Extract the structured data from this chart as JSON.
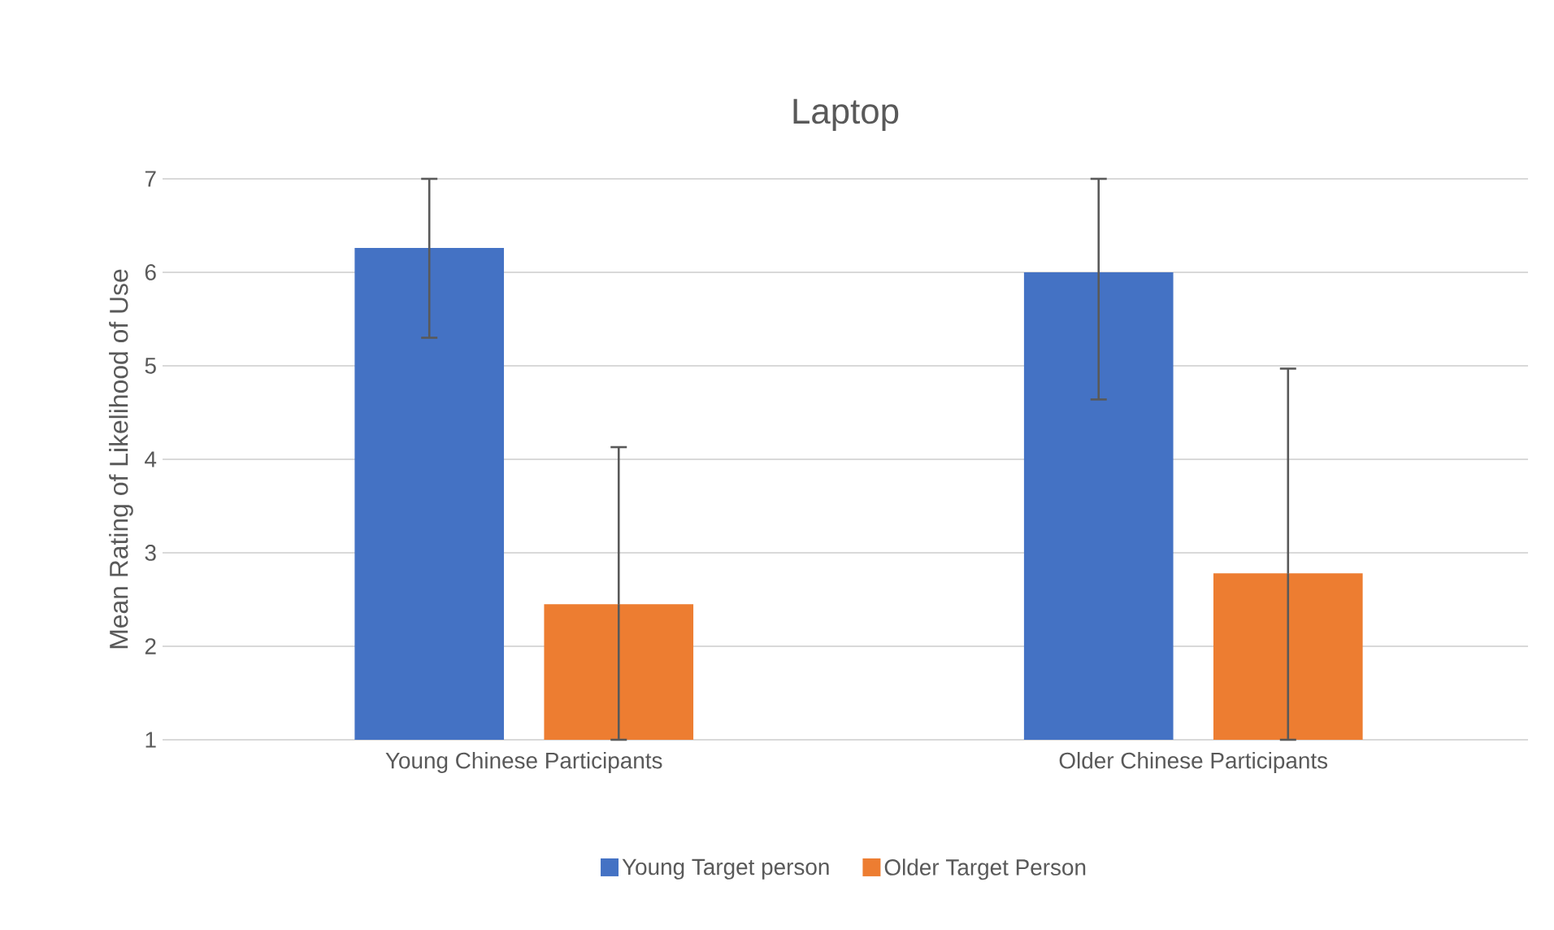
{
  "chart_data": {
    "type": "bar",
    "title": "Laptop",
    "ylabel": "Mean Rating of Likelihood of Use",
    "categories": [
      "Young Chinese Participants",
      "Older Chinese Participants"
    ],
    "series": [
      {
        "name": "Young Target person",
        "color": "#4472c4",
        "values": [
          6.26,
          6.0
        ],
        "errors": [
          [
            5.3,
            7
          ],
          [
            4.64,
            7
          ]
        ]
      },
      {
        "name": "Older Target Person",
        "color": "#ed7d31",
        "values": [
          2.45,
          2.78
        ],
        "errors": [
          [
            1,
            4.13
          ],
          [
            1,
            4.97
          ]
        ]
      }
    ],
    "ylim": [
      1,
      7
    ],
    "yticks": [
      1,
      2,
      3,
      4,
      5,
      6,
      7
    ],
    "grid": "y",
    "legend": "bottom"
  }
}
